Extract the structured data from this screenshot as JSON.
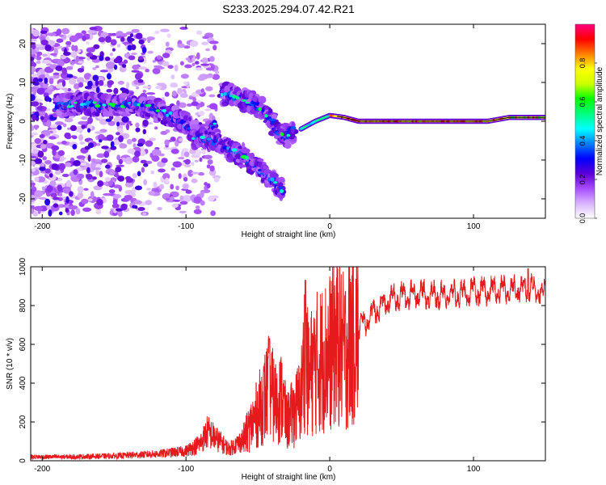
{
  "title": "S233.2025.294.07.42.R21",
  "chart_data": [
    {
      "type": "heatmap",
      "name": "spectrogram",
      "xlabel": "Height of straight line (km)",
      "ylabel": "Frequency (Hz)",
      "xlim": [
        -208,
        150
      ],
      "ylim": [
        -25,
        25
      ],
      "xticks": [
        -200,
        -100,
        0,
        100
      ],
      "yticks": [
        -20,
        -10,
        0,
        10,
        20
      ],
      "colorbar": {
        "label": "Normalized spectral amplitude",
        "range": [
          0,
          1
        ],
        "ticks": [
          "0.0",
          "0.2",
          "0.4",
          "0.6",
          "0.8"
        ],
        "colors": [
          "#ffffff",
          "#d9b3ff",
          "#a64dff",
          "#5a00d6",
          "#0000ff",
          "#0080ff",
          "#00ffff",
          "#00ff80",
          "#00ff00",
          "#ccff00",
          "#ffff00",
          "#ff8000",
          "#ff0000",
          "#ff0080"
        ]
      },
      "ridges": [
        {
          "name": "main-track",
          "x": [
            -190,
            -170,
            -150,
            -135,
            -120,
            -110,
            -100,
            -92,
            -85,
            -80
          ],
          "y": [
            4,
            4.5,
            4,
            4.5,
            3,
            1.5,
            -1,
            -3,
            -4,
            -1
          ]
        },
        {
          "name": "lower-branch",
          "x": [
            -95,
            -80,
            -70,
            -60,
            -50,
            -45,
            -40,
            -35,
            -32
          ],
          "y": [
            -4,
            -5,
            -7,
            -9,
            -12,
            -14,
            -15,
            -17,
            -18
          ]
        },
        {
          "name": "upper-branch",
          "x": [
            -75,
            -70,
            -65,
            -60,
            -55,
            -50,
            -45,
            -40,
            -35,
            -30,
            -25
          ],
          "y": [
            7,
            7,
            6,
            5.5,
            5,
            4,
            2,
            0,
            -3,
            -4,
            -2
          ]
        },
        {
          "name": "carrier-line",
          "x": [
            -20,
            -10,
            0,
            10,
            20,
            50,
            80,
            110,
            125,
            150
          ],
          "y": [
            -2,
            0,
            1.5,
            1,
            0,
            0,
            0,
            0,
            1,
            1
          ]
        }
      ]
    },
    {
      "type": "line",
      "name": "snr",
      "xlabel": "Height of straight line (km)",
      "ylabel": "SNR (10 * v/v)",
      "xlim": [
        -208,
        150
      ],
      "ylim": [
        0,
        1000
      ],
      "xticks": [
        -200,
        -100,
        0,
        100
      ],
      "yticks": [
        0,
        200,
        400,
        600,
        800,
        1000
      ],
      "color": "#e41a1c",
      "envelope": {
        "x": [
          -208,
          -180,
          -150,
          -120,
          -100,
          -90,
          -85,
          -80,
          -70,
          -60,
          -50,
          -42,
          -38,
          -33,
          -30,
          -25,
          -20,
          -17,
          -15,
          -10,
          0,
          5,
          10,
          15,
          20,
          30,
          40,
          50,
          60,
          80,
          100,
          120,
          140,
          150
        ],
        "y": [
          20,
          20,
          25,
          35,
          50,
          90,
          150,
          120,
          60,
          110,
          250,
          380,
          300,
          330,
          200,
          250,
          320,
          600,
          420,
          500,
          560,
          640,
          550,
          650,
          680,
          760,
          820,
          850,
          860,
          850,
          870,
          880,
          890,
          860
        ],
        "spikes": [
          {
            "x": -17,
            "y": 930
          },
          {
            "x": -42,
            "y": 630
          },
          {
            "x": 138,
            "y": 990
          }
        ]
      }
    }
  ]
}
